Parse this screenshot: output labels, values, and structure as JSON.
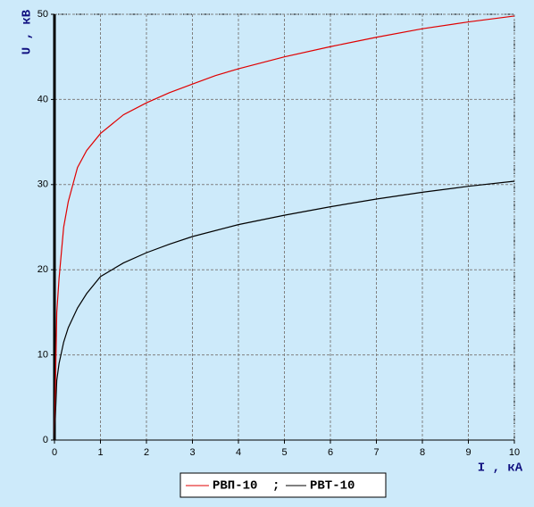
{
  "chart_data": {
    "type": "line",
    "x_label": "I , кА",
    "y_label": "U , кВ",
    "legend_separator": ";",
    "series": [
      {
        "name": "РВП-10",
        "color": "#e00000",
        "x": [
          0,
          0.05,
          0.1,
          0.2,
          0.3,
          0.5,
          0.7,
          1,
          1.5,
          2,
          2.5,
          3,
          3.5,
          4,
          5,
          6,
          7,
          8,
          9,
          10
        ],
        "values": [
          0,
          15,
          19,
          25,
          28,
          32,
          34,
          36,
          38.2,
          39.6,
          40.8,
          41.8,
          42.8,
          43.6,
          45,
          46.2,
          47.3,
          48.3,
          49.1,
          49.8
        ]
      },
      {
        "name": "РВТ-10",
        "color": "#000000",
        "x": [
          0,
          0.05,
          0.1,
          0.2,
          0.3,
          0.5,
          0.7,
          1,
          1.5,
          2,
          2.5,
          3,
          4,
          5,
          6,
          7,
          8,
          9,
          10
        ],
        "values": [
          0,
          7,
          9,
          11.5,
          13.2,
          15.5,
          17.2,
          19.2,
          20.8,
          22,
          23,
          23.9,
          25.3,
          26.4,
          27.4,
          28.3,
          29.1,
          29.8,
          30.4
        ]
      }
    ],
    "xlim": [
      0,
      10
    ],
    "xticks": [
      0,
      1,
      2,
      3,
      4,
      5,
      6,
      7,
      8,
      9,
      10
    ],
    "ylim": [
      0,
      50
    ],
    "yticks": [
      0,
      10,
      20,
      30,
      40,
      50
    ],
    "grid": true
  }
}
